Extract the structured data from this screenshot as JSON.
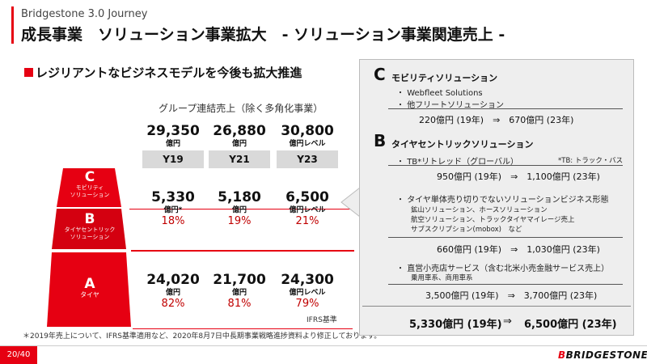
{
  "header": {
    "journey": "Bridgestone 3.0 Journey",
    "title": "成長事業　ソリューション事業拡大　- ソリューション事業関連売上 -"
  },
  "headline": "レジリアントなビジネスモデルを今後も拡大推進",
  "group_title": "グループ連結売上（除く多角化事業）",
  "columns": [
    {
      "total": "29,350",
      "total_unit": "億円",
      "year": "Y19",
      "cb": "5,330",
      "cb_unit": "億円*",
      "cb_pct": "18%",
      "a": "24,020",
      "a_unit": "億円",
      "a_pct": "82%"
    },
    {
      "total": "26,880",
      "total_unit": "億円",
      "year": "Y21",
      "cb": "5,180",
      "cb_unit": "億円",
      "cb_pct": "19%",
      "a": "21,700",
      "a_unit": "億円",
      "a_pct": "81%"
    },
    {
      "total": "30,800",
      "total_unit": "億円レベル",
      "year": "Y23",
      "cb": "6,500",
      "cb_unit": "億円レベル",
      "cb_pct": "21%",
      "a": "24,300",
      "a_unit": "億円レベル",
      "a_pct": "79%"
    }
  ],
  "pyramid": {
    "c": {
      "letter": "C",
      "line1": "モビリティ",
      "line2": "ソリューション"
    },
    "b": {
      "letter": "B",
      "line1": "タイヤセントリック",
      "line2": "ソリューション"
    },
    "a": {
      "letter": "A",
      "line1": "タイヤ"
    }
  },
  "ifrs": "IFRS基準",
  "footnote": "＊2019年売上について、IFRS基準適用など、2020年8月7日中長期事業戦略進捗資料より修正しております。",
  "panel": {
    "c": {
      "letter": "C",
      "title": "モビリティソリューション",
      "items": [
        "Webfleet Solutions",
        "他フリートソリューション"
      ],
      "value": "220億円 (19年)　⇒　670億円 (23年)"
    },
    "b": {
      "letter": "B",
      "title": "タイヤセントリックソリューション",
      "item1": "TB*リトレッド（グローバル）",
      "item1_note": "*TB: トラック・バス",
      "item1_value": "950億円 (19年)　⇒　1,100億円 (23年)",
      "item2": "タイヤ単体売り切りでないソリューションビジネス形態",
      "item2_subs": [
        "鉱山ソリューション、ホースソリューション",
        "航空ソリューション、トラックタイヤマイレージ売上",
        "サブスクリプション(mobox)　など"
      ],
      "item2_value": "660億円 (19年)　⇒　1,030億円 (23年)",
      "item3": "直営小売店サービス（含む北米小売金融サービス売上）",
      "item3_sub": "乗用車系、商用車系",
      "item3_value": "3,500億円 (19年)　⇒　3,700億円 (23年)"
    },
    "total_left": "5,330億円 (19年)",
    "total_arrow": "⇒",
    "total_right": "6,500億円 (23年)"
  },
  "footer": {
    "page": "20/40",
    "brand_b": "B",
    "brand_rest": "BRIDGESTONE"
  },
  "colors": {
    "accent": "#e60012",
    "pct": "#c00000",
    "panel_bg": "#eeeeee"
  }
}
